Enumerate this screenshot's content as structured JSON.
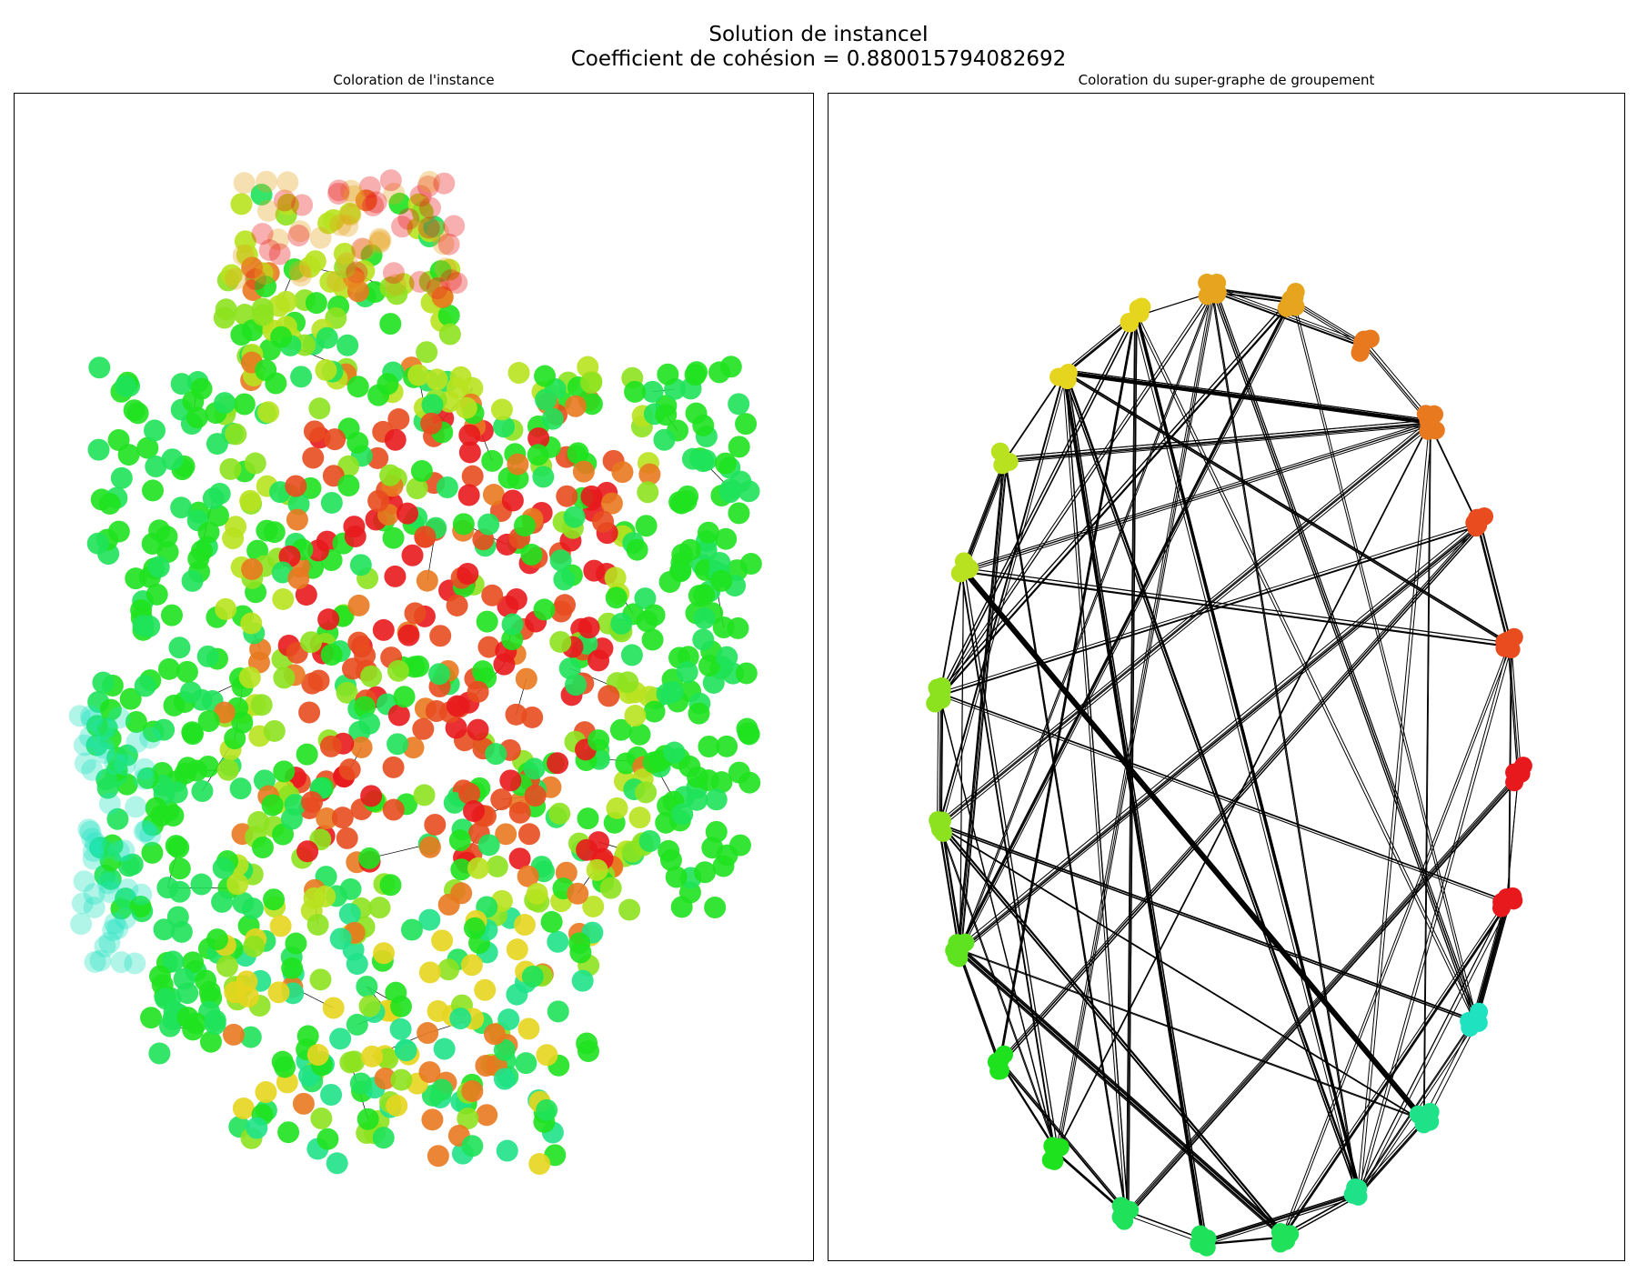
{
  "figure": {
    "title_line1": "Solution de instanceI",
    "title_line2": "Coefficient de cohésion = 0.880015794082692"
  },
  "left_panel": {
    "title": "Coloration de l'instance"
  },
  "right_panel": {
    "title": "Coloration du super-graphe de groupement"
  },
  "colors": {
    "red": "#e8191d",
    "red_orange": "#e84c1f",
    "orange": "#e8791f",
    "amber": "#e6a41f",
    "yellow": "#e6d51f",
    "yellow_green": "#b8e21f",
    "lime": "#8de21f",
    "green_lime": "#5fe21f",
    "green": "#1fe21f",
    "mint": "#1fe25a",
    "teal_green": "#1fe288",
    "aqua": "#1fe2c0",
    "edge": "#000000"
  }
}
